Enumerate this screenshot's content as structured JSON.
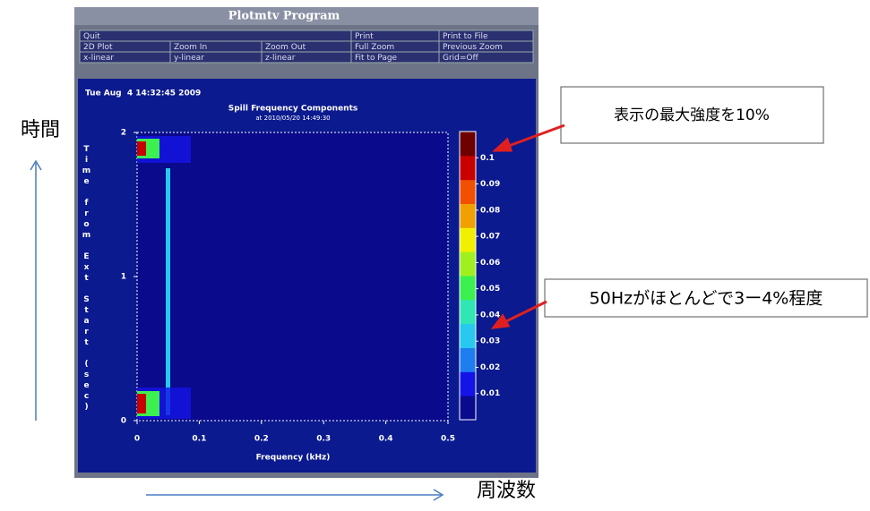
{
  "window": {
    "title": "Plotmtv Program"
  },
  "menu": {
    "rows": [
      [
        "Quit",
        "Print",
        "Print to File"
      ],
      [
        "2D Plot",
        "Zoom In",
        "Zoom Out",
        "Full Zoom",
        "Previous Zoom"
      ],
      [
        "x-linear",
        "y-linear",
        "z-linear",
        "Fit to Page",
        "Grid=Off"
      ]
    ]
  },
  "plot": {
    "date": "Tue Aug  4 14:32:45 2009",
    "title": "Spill Frequency Components",
    "subtitle": "at 2010/05/20 14:49:30",
    "xlabel": "Frequency (kHz)",
    "ylabel": "Time from Ext Start (sec)",
    "xlim": [
      0,
      0.5
    ],
    "xticks": [
      0,
      0.1,
      0.2,
      0.3,
      0.4,
      0.5
    ],
    "ylim": [
      0,
      2
    ],
    "yticks": [
      0,
      1,
      2
    ],
    "colorbar": {
      "lim": [
        0,
        0.11
      ],
      "ticks": [
        0.01,
        0.02,
        0.03,
        0.04,
        0.05,
        0.06,
        0.07,
        0.08,
        0.09,
        0.1
      ],
      "colors": [
        "#0a0a8c",
        "#1414e6",
        "#1e7ef0",
        "#28c8f0",
        "#30e6b4",
        "#3cf050",
        "#a0f020",
        "#f0f000",
        "#f0a000",
        "#f05000",
        "#c80000",
        "#6e0000"
      ]
    }
  },
  "annotations": {
    "max_note": "表示の最大強度を10%",
    "hz_note": "50Hzがほとんどで3ー4%程度",
    "time_label": "時間",
    "freq_label": "周波数"
  }
}
